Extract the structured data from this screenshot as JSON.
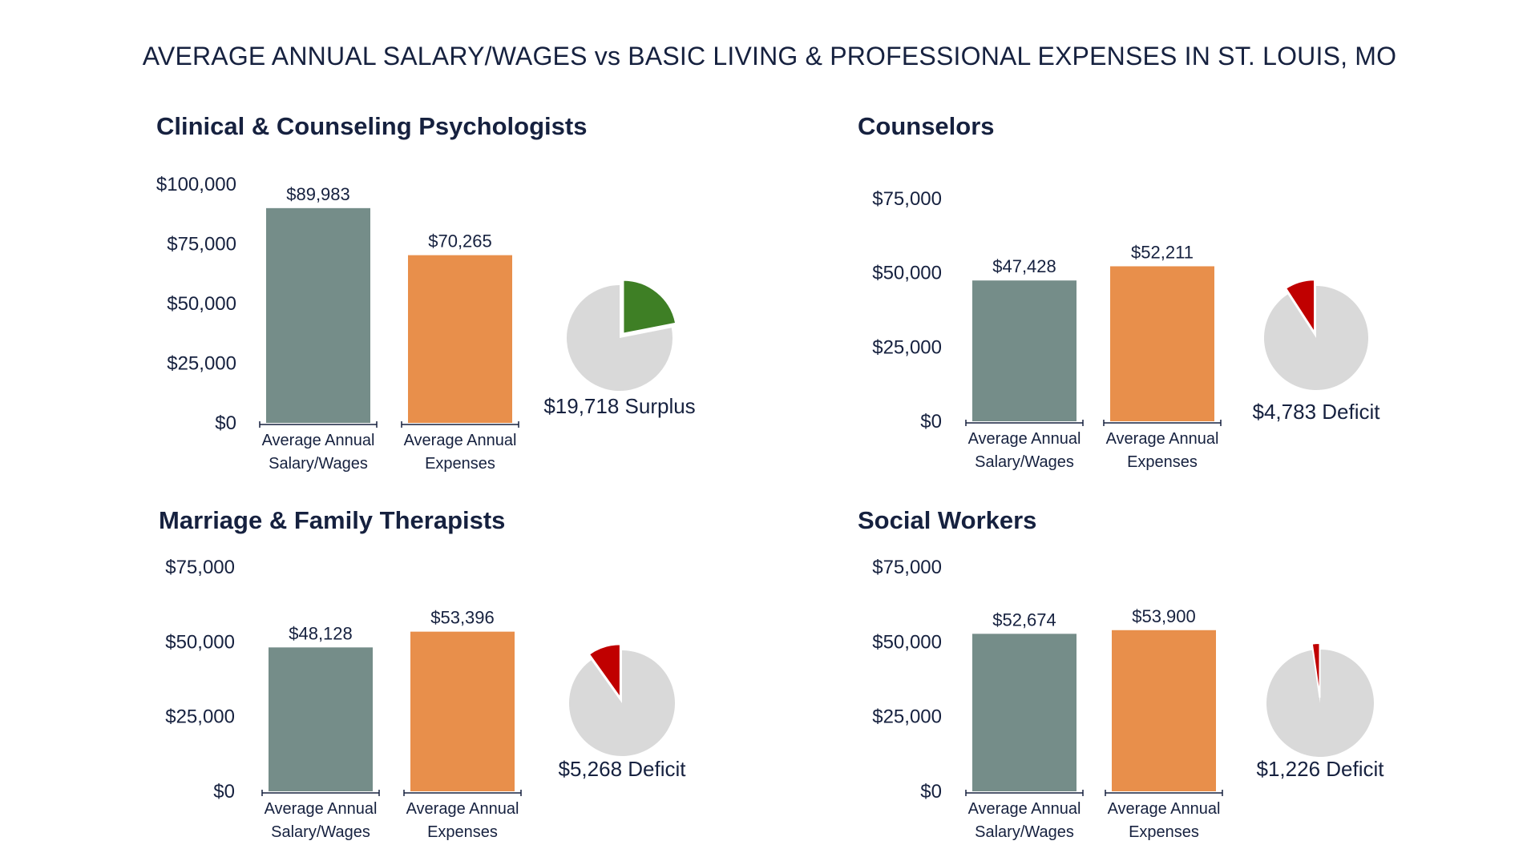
{
  "title": "AVERAGE ANNUAL SALARY/WAGES vs BASIC LIVING & PROFESSIONAL EXPENSES IN ST. LOUIS, MO",
  "colors": {
    "salary": "#758d89",
    "expenses": "#e88f4b",
    "pie_base": "#d9d9d9",
    "surplus": "#3e7f25",
    "deficit": "#c00000",
    "text": "#16213f"
  },
  "chart_data": [
    {
      "type": "bar",
      "title": "Clinical & Counseling Psychologists",
      "categories": [
        "Average Annual Salary/Wages",
        "Average Annual Expenses"
      ],
      "category_lines": [
        [
          "Average Annual",
          "Salary/Wages"
        ],
        [
          "Average Annual",
          "Expenses"
        ]
      ],
      "values": [
        89983,
        70265
      ],
      "value_labels": [
        "$89,983",
        "$70,265"
      ],
      "ylim": [
        0,
        100000
      ],
      "yticks": [
        0,
        25000,
        50000,
        75000,
        100000
      ],
      "ytick_labels": [
        "$0",
        "$25,000",
        "$50,000",
        "$75,000",
        "$100,000"
      ],
      "grid": false,
      "pie": {
        "kind": "surplus",
        "amount": 19718,
        "label": "$19,718 Surplus"
      }
    },
    {
      "type": "bar",
      "title": "Counselors",
      "categories": [
        "Average Annual Salary/Wages",
        "Average Annual Expenses"
      ],
      "category_lines": [
        [
          "Average Annual",
          "Salary/Wages"
        ],
        [
          "Average Annual",
          "Expenses"
        ]
      ],
      "values": [
        47428,
        52211
      ],
      "value_labels": [
        "$47,428",
        "$52,211"
      ],
      "ylim": [
        0,
        75000
      ],
      "yticks": [
        0,
        25000,
        50000,
        75000
      ],
      "ytick_labels": [
        "$0",
        "$25,000",
        "$50,000",
        "$75,000"
      ],
      "grid": false,
      "pie": {
        "kind": "deficit",
        "amount": 4783,
        "label": "$4,783 Deficit"
      }
    },
    {
      "type": "bar",
      "title": "Marriage & Family Therapists",
      "categories": [
        "Average Annual Salary/Wages",
        "Average Annual Expenses"
      ],
      "category_lines": [
        [
          "Average Annual",
          "Salary/Wages"
        ],
        [
          "Average Annual",
          "Expenses"
        ]
      ],
      "values": [
        48128,
        53396
      ],
      "value_labels": [
        "$48,128",
        "$53,396"
      ],
      "ylim": [
        0,
        75000
      ],
      "yticks": [
        0,
        25000,
        50000,
        75000
      ],
      "ytick_labels": [
        "$0",
        "$25,000",
        "$50,000",
        "$75,000"
      ],
      "grid": false,
      "pie": {
        "kind": "deficit",
        "amount": 5268,
        "label": "$5,268 Deficit"
      }
    },
    {
      "type": "bar",
      "title": "Social Workers",
      "categories": [
        "Average Annual Salary/Wages",
        "Average Annual Expenses"
      ],
      "category_lines": [
        [
          "Average Annual",
          "Salary/Wages"
        ],
        [
          "Average Annual",
          "Expenses"
        ]
      ],
      "values": [
        52674,
        53900
      ],
      "value_labels": [
        "$52,674",
        "$53,900"
      ],
      "ylim": [
        0,
        75000
      ],
      "yticks": [
        0,
        25000,
        50000,
        75000
      ],
      "ytick_labels": [
        "$0",
        "$25,000",
        "$50,000",
        "$75,000"
      ],
      "grid": false,
      "pie": {
        "kind": "deficit",
        "amount": 1226,
        "label": "$1,226 Deficit"
      }
    }
  ]
}
